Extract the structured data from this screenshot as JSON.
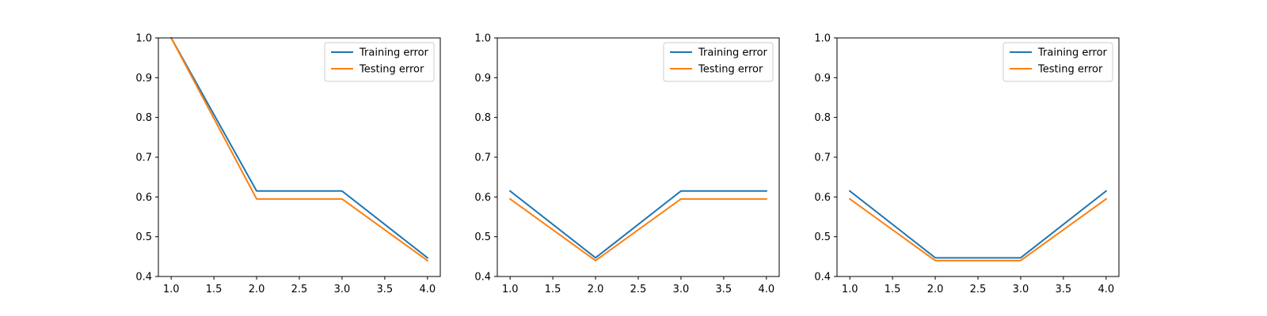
{
  "chart_data": [
    {
      "type": "line",
      "x": [
        1.0,
        2.0,
        3.0,
        4.0
      ],
      "xticks": [
        "1.0",
        "1.5",
        "2.0",
        "2.5",
        "3.0",
        "3.5",
        "4.0"
      ],
      "yticks": [
        "0.4",
        "0.5",
        "0.6",
        "0.7",
        "0.8",
        "0.9",
        "1.0"
      ],
      "ylim": [
        0.4,
        1.0
      ],
      "xlim": [
        0.85,
        4.15
      ],
      "legend_position": "upper-right",
      "series": [
        {
          "name": "Training error",
          "values": [
            1.0,
            0.615,
            0.615,
            0.447
          ],
          "color": "#1f77b4"
        },
        {
          "name": "Testing error",
          "values": [
            1.0,
            0.595,
            0.595,
            0.44
          ],
          "color": "#ff7f0e"
        }
      ]
    },
    {
      "type": "line",
      "x": [
        1.0,
        2.0,
        3.0,
        4.0
      ],
      "xticks": [
        "1.0",
        "1.5",
        "2.0",
        "2.5",
        "3.0",
        "3.5",
        "4.0"
      ],
      "yticks": [
        "0.4",
        "0.5",
        "0.6",
        "0.7",
        "0.8",
        "0.9",
        "1.0"
      ],
      "ylim": [
        0.4,
        1.0
      ],
      "xlim": [
        0.85,
        4.15
      ],
      "legend_position": "upper-right",
      "series": [
        {
          "name": "Training error",
          "values": [
            0.615,
            0.447,
            0.615,
            0.615
          ],
          "color": "#1f77b4"
        },
        {
          "name": "Testing error",
          "values": [
            0.595,
            0.44,
            0.595,
            0.595
          ],
          "color": "#ff7f0e"
        }
      ]
    },
    {
      "type": "line",
      "x": [
        1.0,
        2.0,
        3.0,
        4.0
      ],
      "xticks": [
        "1.0",
        "1.5",
        "2.0",
        "2.5",
        "3.0",
        "3.5",
        "4.0"
      ],
      "yticks": [
        "0.4",
        "0.5",
        "0.6",
        "0.7",
        "0.8",
        "0.9",
        "1.0"
      ],
      "ylim": [
        0.4,
        1.0
      ],
      "xlim": [
        0.85,
        4.15
      ],
      "legend_position": "upper-right",
      "series": [
        {
          "name": "Training error",
          "values": [
            0.615,
            0.447,
            0.447,
            0.615
          ],
          "color": "#1f77b4"
        },
        {
          "name": "Testing error",
          "values": [
            0.595,
            0.44,
            0.44,
            0.595
          ],
          "color": "#ff7f0e"
        }
      ]
    }
  ]
}
